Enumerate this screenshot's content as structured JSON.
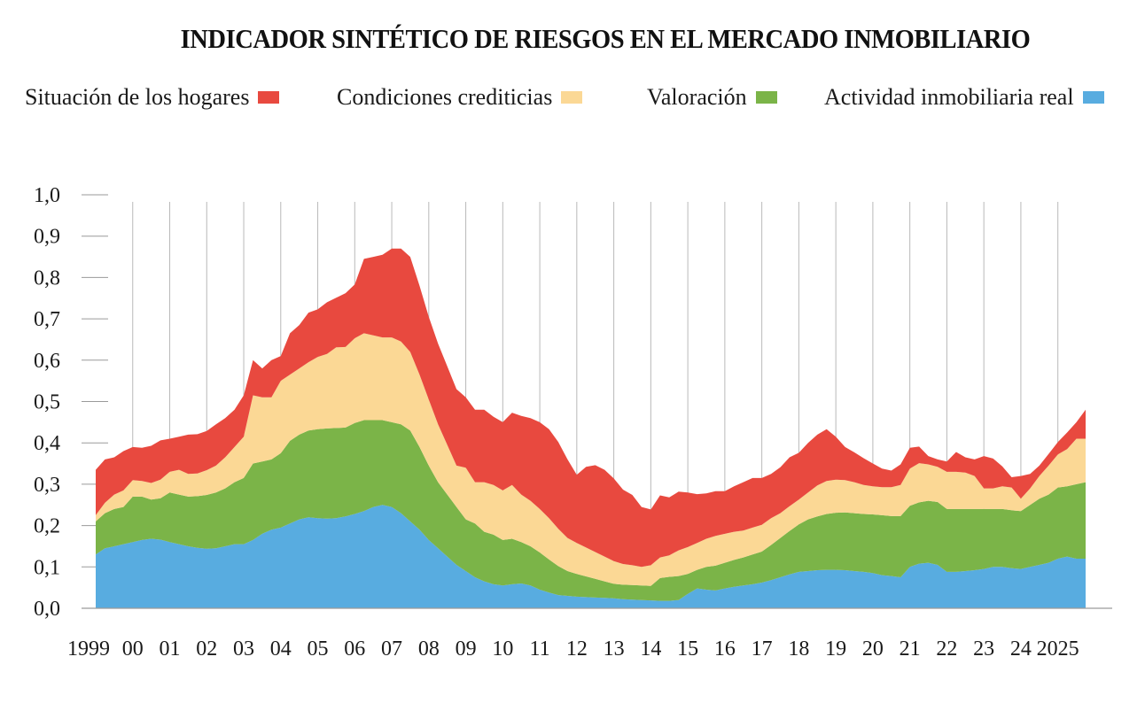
{
  "chart_data": {
    "type": "area",
    "stacked": true,
    "title": "INDICADOR SINTÉTICO DE RIESGOS EN EL MERCADO INMOBILIARIO",
    "xlabel": "",
    "ylabel": "",
    "ylim": [
      0,
      1.0
    ],
    "xlim": [
      1999.0,
      2025.75
    ],
    "yticks": [
      "0,0",
      "0,1",
      "0,2",
      "0,3",
      "0,4",
      "0,5",
      "0,6",
      "0,7",
      "0,8",
      "0,9",
      "1,0"
    ],
    "xticks": [
      {
        "x": 1999,
        "label": "1999"
      },
      {
        "x": 2000,
        "label": "00"
      },
      {
        "x": 2001,
        "label": "01"
      },
      {
        "x": 2002,
        "label": "02"
      },
      {
        "x": 2003,
        "label": "03"
      },
      {
        "x": 2004,
        "label": "04"
      },
      {
        "x": 2005,
        "label": "05"
      },
      {
        "x": 2006,
        "label": "06"
      },
      {
        "x": 2007,
        "label": "07"
      },
      {
        "x": 2008,
        "label": "08"
      },
      {
        "x": 2009,
        "label": "09"
      },
      {
        "x": 2010,
        "label": "10"
      },
      {
        "x": 2011,
        "label": "11"
      },
      {
        "x": 2012,
        "label": "12"
      },
      {
        "x": 2013,
        "label": "13"
      },
      {
        "x": 2014,
        "label": "14"
      },
      {
        "x": 2015,
        "label": "15"
      },
      {
        "x": 2016,
        "label": "16"
      },
      {
        "x": 2017,
        "label": "17"
      },
      {
        "x": 2018,
        "label": "18"
      },
      {
        "x": 2019,
        "label": "19"
      },
      {
        "x": 2020,
        "label": "20"
      },
      {
        "x": 2021,
        "label": "21"
      },
      {
        "x": 2022,
        "label": "22"
      },
      {
        "x": 2023,
        "label": "23"
      },
      {
        "x": 2024,
        "label": "24"
      },
      {
        "x": 2025,
        "label": "2025"
      }
    ],
    "grid": "vertical",
    "legend_position": "top",
    "x": [
      1999.0,
      1999.25,
      1999.5,
      1999.75,
      2000.0,
      2000.25,
      2000.5,
      2000.75,
      2001.0,
      2001.25,
      2001.5,
      2001.75,
      2002.0,
      2002.25,
      2002.5,
      2002.75,
      2003.0,
      2003.25,
      2003.5,
      2003.75,
      2004.0,
      2004.25,
      2004.5,
      2004.75,
      2005.0,
      2005.25,
      2005.5,
      2005.75,
      2006.0,
      2006.25,
      2006.5,
      2006.75,
      2007.0,
      2007.25,
      2007.5,
      2007.75,
      2008.0,
      2008.25,
      2008.5,
      2008.75,
      2009.0,
      2009.25,
      2009.5,
      2009.75,
      2010.0,
      2010.25,
      2010.5,
      2010.75,
      2011.0,
      2011.25,
      2011.5,
      2011.75,
      2012.0,
      2012.25,
      2012.5,
      2012.75,
      2013.0,
      2013.25,
      2013.5,
      2013.75,
      2014.0,
      2014.25,
      2014.5,
      2014.75,
      2015.0,
      2015.25,
      2015.5,
      2015.75,
      2016.0,
      2016.25,
      2016.5,
      2016.75,
      2017.0,
      2017.25,
      2017.5,
      2017.75,
      2018.0,
      2018.25,
      2018.5,
      2018.75,
      2019.0,
      2019.25,
      2019.5,
      2019.75,
      2020.0,
      2020.25,
      2020.5,
      2020.75,
      2021.0,
      2021.25,
      2021.5,
      2021.75,
      2022.0,
      2022.25,
      2022.5,
      2022.75,
      2023.0,
      2023.25,
      2023.5,
      2023.75,
      2024.0,
      2024.25,
      2024.5,
      2024.75,
      2025.0,
      2025.25,
      2025.5,
      2025.75
    ],
    "series": [
      {
        "name": "Actividad inmobiliaria real",
        "color": "#58ace0",
        "values": [
          0.13,
          0.145,
          0.15,
          0.155,
          0.16,
          0.165,
          0.168,
          0.166,
          0.16,
          0.155,
          0.15,
          0.146,
          0.144,
          0.145,
          0.15,
          0.155,
          0.155,
          0.165,
          0.18,
          0.19,
          0.195,
          0.205,
          0.215,
          0.22,
          0.218,
          0.217,
          0.218,
          0.222,
          0.228,
          0.235,
          0.245,
          0.25,
          0.245,
          0.23,
          0.21,
          0.19,
          0.165,
          0.145,
          0.125,
          0.105,
          0.09,
          0.075,
          0.065,
          0.058,
          0.055,
          0.058,
          0.06,
          0.055,
          0.045,
          0.038,
          0.032,
          0.03,
          0.028,
          0.027,
          0.026,
          0.025,
          0.024,
          0.022,
          0.021,
          0.02,
          0.019,
          0.018,
          0.018,
          0.02,
          0.035,
          0.048,
          0.045,
          0.043,
          0.048,
          0.052,
          0.055,
          0.058,
          0.062,
          0.068,
          0.075,
          0.082,
          0.088,
          0.09,
          0.092,
          0.093,
          0.093,
          0.092,
          0.09,
          0.088,
          0.085,
          0.08,
          0.078,
          0.075,
          0.1,
          0.108,
          0.11,
          0.105,
          0.088,
          0.088,
          0.09,
          0.092,
          0.095,
          0.1,
          0.1,
          0.097,
          0.095,
          0.1,
          0.105,
          0.11,
          0.12,
          0.125,
          0.12,
          0.12
        ]
      },
      {
        "name": "Valoración",
        "color": "#7bb448",
        "values": [
          0.08,
          0.085,
          0.09,
          0.09,
          0.11,
          0.105,
          0.095,
          0.1,
          0.12,
          0.12,
          0.12,
          0.125,
          0.13,
          0.135,
          0.14,
          0.15,
          0.16,
          0.185,
          0.175,
          0.17,
          0.18,
          0.2,
          0.205,
          0.21,
          0.215,
          0.218,
          0.218,
          0.215,
          0.22,
          0.22,
          0.21,
          0.205,
          0.205,
          0.215,
          0.22,
          0.2,
          0.18,
          0.16,
          0.15,
          0.14,
          0.125,
          0.13,
          0.12,
          0.12,
          0.11,
          0.11,
          0.1,
          0.095,
          0.09,
          0.08,
          0.07,
          0.06,
          0.055,
          0.05,
          0.045,
          0.04,
          0.035,
          0.035,
          0.035,
          0.035,
          0.035,
          0.055,
          0.058,
          0.058,
          0.048,
          0.045,
          0.055,
          0.06,
          0.062,
          0.065,
          0.068,
          0.072,
          0.075,
          0.085,
          0.095,
          0.105,
          0.115,
          0.125,
          0.13,
          0.135,
          0.138,
          0.14,
          0.14,
          0.14,
          0.142,
          0.145,
          0.145,
          0.148,
          0.148,
          0.148,
          0.15,
          0.152,
          0.152,
          0.152,
          0.15,
          0.148,
          0.145,
          0.14,
          0.14,
          0.14,
          0.14,
          0.15,
          0.16,
          0.165,
          0.172,
          0.17,
          0.18,
          0.185
        ]
      },
      {
        "name": "Condiciones crediticias",
        "color": "#fbd895",
        "values": [
          0.015,
          0.025,
          0.035,
          0.04,
          0.04,
          0.038,
          0.04,
          0.045,
          0.05,
          0.06,
          0.055,
          0.055,
          0.06,
          0.065,
          0.075,
          0.085,
          0.1,
          0.165,
          0.155,
          0.15,
          0.175,
          0.16,
          0.16,
          0.165,
          0.175,
          0.18,
          0.195,
          0.195,
          0.205,
          0.21,
          0.205,
          0.2,
          0.205,
          0.2,
          0.19,
          0.175,
          0.16,
          0.14,
          0.12,
          0.1,
          0.125,
          0.1,
          0.12,
          0.12,
          0.12,
          0.13,
          0.115,
          0.11,
          0.105,
          0.1,
          0.09,
          0.08,
          0.075,
          0.07,
          0.065,
          0.06,
          0.055,
          0.05,
          0.048,
          0.045,
          0.05,
          0.05,
          0.052,
          0.062,
          0.065,
          0.065,
          0.068,
          0.072,
          0.07,
          0.068,
          0.065,
          0.065,
          0.065,
          0.065,
          0.06,
          0.06,
          0.06,
          0.065,
          0.075,
          0.08,
          0.08,
          0.078,
          0.075,
          0.07,
          0.068,
          0.068,
          0.07,
          0.075,
          0.09,
          0.095,
          0.088,
          0.085,
          0.09,
          0.09,
          0.088,
          0.08,
          0.05,
          0.05,
          0.055,
          0.055,
          0.03,
          0.04,
          0.055,
          0.07,
          0.08,
          0.09,
          0.11,
          0.105
        ]
      },
      {
        "name": "Situación de los hogares",
        "color": "#e8493f",
        "values": [
          0.11,
          0.105,
          0.09,
          0.095,
          0.08,
          0.08,
          0.09,
          0.095,
          0.08,
          0.08,
          0.095,
          0.095,
          0.095,
          0.1,
          0.095,
          0.09,
          0.1,
          0.085,
          0.07,
          0.09,
          0.06,
          0.1,
          0.105,
          0.12,
          0.115,
          0.125,
          0.12,
          0.13,
          0.13,
          0.18,
          0.19,
          0.2,
          0.215,
          0.225,
          0.23,
          0.215,
          0.2,
          0.195,
          0.19,
          0.185,
          0.17,
          0.175,
          0.175,
          0.165,
          0.165,
          0.175,
          0.19,
          0.2,
          0.21,
          0.215,
          0.21,
          0.19,
          0.165,
          0.195,
          0.21,
          0.21,
          0.2,
          0.18,
          0.17,
          0.145,
          0.135,
          0.15,
          0.14,
          0.142,
          0.132,
          0.118,
          0.11,
          0.108,
          0.103,
          0.11,
          0.117,
          0.12,
          0.113,
          0.107,
          0.111,
          0.118,
          0.113,
          0.12,
          0.123,
          0.125,
          0.104,
          0.08,
          0.072,
          0.065,
          0.055,
          0.045,
          0.04,
          0.05,
          0.05,
          0.04,
          0.02,
          0.018,
          0.025,
          0.048,
          0.037,
          0.04,
          0.078,
          0.072,
          0.048,
          0.025,
          0.055,
          0.035,
          0.025,
          0.028,
          0.03,
          0.04,
          0.04,
          0.07
        ]
      }
    ]
  }
}
